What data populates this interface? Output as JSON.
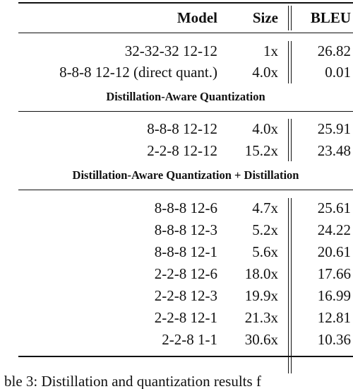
{
  "table": {
    "headers": {
      "model": "Model",
      "size": "Size",
      "bleu": "BLEU"
    },
    "groups": [
      {
        "section_title": "",
        "rows": [
          {
            "model": "32-32-32 12-12",
            "size": "1x",
            "bleu": "26.82"
          },
          {
            "model": "8-8-8 12-12 (direct quant.)",
            "size": "4.0x",
            "bleu": "0.01"
          }
        ]
      },
      {
        "section_title": "Distillation-Aware Quantization",
        "rows": [
          {
            "model": "8-8-8 12-12",
            "size": "4.0x",
            "bleu": "25.91"
          },
          {
            "model": "2-2-8 12-12",
            "size": "15.2x",
            "bleu": "23.48"
          }
        ]
      },
      {
        "section_title": "Distillation-Aware Quantization + Distillation",
        "rows": [
          {
            "model": "8-8-8 12-6",
            "size": "4.7x",
            "bleu": "25.61"
          },
          {
            "model": "8-8-8 12-3",
            "size": "5.2x",
            "bleu": "24.22"
          },
          {
            "model": "8-8-8 12-1",
            "size": "5.6x",
            "bleu": "20.61"
          },
          {
            "model": "2-2-8 12-6",
            "size": "18.0x",
            "bleu": "17.66"
          },
          {
            "model": "2-2-8 12-3",
            "size": "19.9x",
            "bleu": "16.99"
          },
          {
            "model": "2-2-8 12-1",
            "size": "21.3x",
            "bleu": "12.81"
          },
          {
            "model": "2-2-8 1-1",
            "size": "30.6x",
            "bleu": "10.36"
          }
        ]
      }
    ]
  },
  "caption": "ble 3: Distillation and quantization results f"
}
